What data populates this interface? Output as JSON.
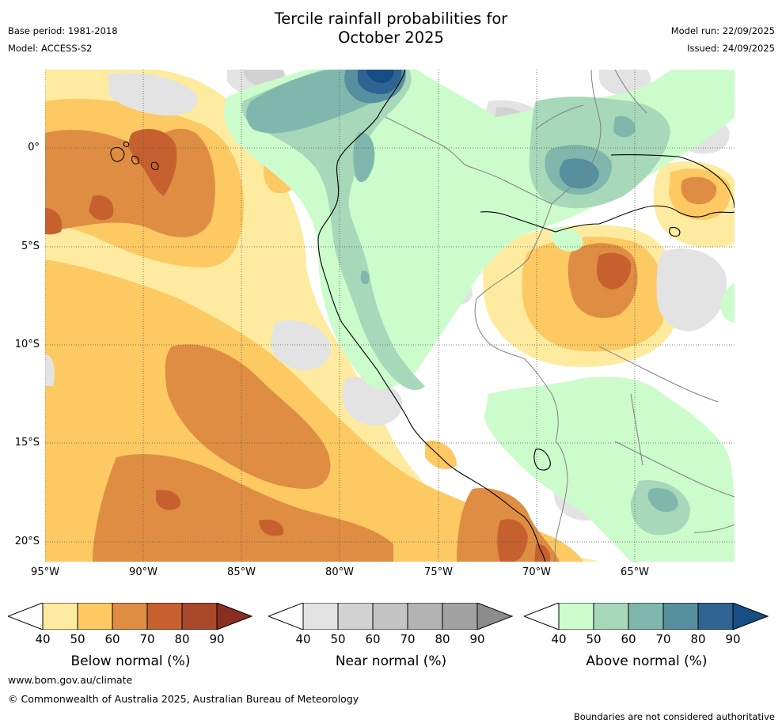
{
  "title": {
    "line1": "Tercile rainfall probabilities for",
    "line2": "October 2025"
  },
  "meta": {
    "base_period": "Base period: 1981-2018",
    "model": "Model: ACCESS-S2",
    "model_run": "Model run: 22/09/2025",
    "issued": "Issued: 24/09/2025"
  },
  "map": {
    "lon_labels": [
      "95°W",
      "90°W",
      "85°W",
      "80°W",
      "75°W",
      "70°W",
      "65°W"
    ],
    "lat_labels": [
      "0°",
      "5°S",
      "10°S",
      "15°S",
      "20°S"
    ],
    "extent": {
      "lon_min": -95,
      "lon_max": -59.9,
      "lat_min": -21,
      "lat_max": 4
    },
    "gridline_style": "dotted"
  },
  "colorbars": [
    {
      "label": "Below normal (%)",
      "ticks": [
        "40",
        "50",
        "60",
        "70",
        "80",
        "90"
      ],
      "colors": [
        "#ffffff",
        "#feeb9f",
        "#fdc962",
        "#de8d42",
        "#c6612f",
        "#a9482a",
        "#8a2e21"
      ]
    },
    {
      "label": "Near normal (%)",
      "ticks": [
        "40",
        "50",
        "60",
        "70",
        "80",
        "90"
      ],
      "colors": [
        "#ffffff",
        "#e3e3e3",
        "#d2d2d2",
        "#c4c4c4",
        "#b3b3b3",
        "#a2a2a2",
        "#8c8c8c"
      ]
    },
    {
      "label": "Above normal (%)",
      "ticks": [
        "40",
        "50",
        "60",
        "70",
        "80",
        "90"
      ],
      "colors": [
        "#ffffff",
        "#ccfccc",
        "#a7d8b9",
        "#80b7ad",
        "#568f9e",
        "#2f6492",
        "#154e84"
      ]
    }
  ],
  "palette": {
    "below": [
      "#feeb9f",
      "#fdc962",
      "#de8d42",
      "#c6612f"
    ],
    "near": [
      "#e3e3e3",
      "#d2d2d2"
    ],
    "above": [
      "#ccfccc",
      "#a7d8b9",
      "#80b7ad",
      "#568f9e",
      "#2f6492",
      "#154e84"
    ]
  },
  "footer": {
    "url": "www.bom.gov.au/climate",
    "copyright": "© Commonwealth of Australia 2025, Australian Bureau of Meteorology",
    "note": "Boundaries are not considered authoritative"
  }
}
